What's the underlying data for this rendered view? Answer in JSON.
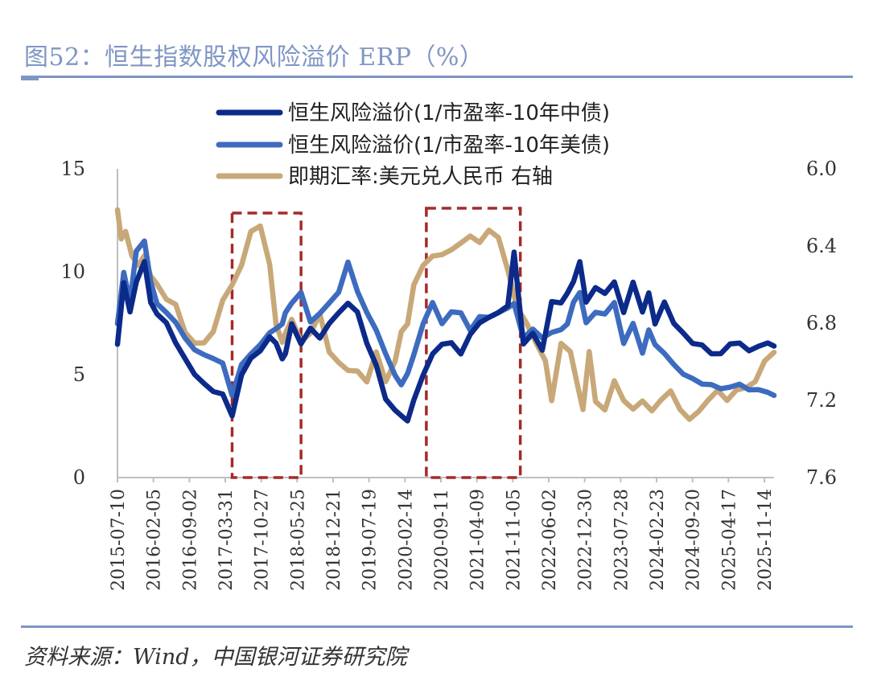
{
  "header": {
    "title": "图52：恒生指数股权风险溢价 ERP（%）"
  },
  "footer": {
    "source": "资料来源：Wind，中国银河证券研究院"
  },
  "colors": {
    "s1": "#0b2a8a",
    "s2": "#3d6bbf",
    "s3": "#c8a878",
    "box": "#a52a2a",
    "axis": "#bfbfbf",
    "accent": "#7f96c4"
  },
  "chart_data": {
    "type": "line",
    "title": "恒生指数股权风险溢价 ERP（%）",
    "x_ticks": [
      "2015-07-10",
      "2016-02-05",
      "2016-09-02",
      "2017-03-31",
      "2017-10-27",
      "2018-05-25",
      "2018-12-21",
      "2019-07-19",
      "2020-02-14",
      "2020-09-11",
      "2021-04-09",
      "2021-11-05",
      "2022-06-02",
      "2022-12-30",
      "2023-07-28",
      "2024-02-23",
      "2024-09-20",
      "2025-04-17",
      "2025-11-14"
    ],
    "x_range": [
      2015.52,
      2026.0
    ],
    "y_left": {
      "min": 0,
      "max": 15,
      "ticks": [
        "0",
        "5",
        "10",
        "15"
      ]
    },
    "y_right": {
      "min": 6.0,
      "max": 7.6,
      "inverted": true,
      "ticks": [
        "6.0",
        "6.4",
        "6.8",
        "7.2",
        "7.6"
      ]
    },
    "series": [
      {
        "name": "恒生风险溢价(1/市盈率-10年中债)",
        "axis": "left",
        "color": "#0b2a8a",
        "t": [
          2015.52,
          2015.62,
          2015.72,
          2015.82,
          2015.95,
          2016.05,
          2016.15,
          2016.3,
          2016.45,
          2016.6,
          2016.75,
          2016.9,
          2017.05,
          2017.2,
          2017.35,
          2017.5,
          2017.65,
          2017.8,
          2017.95,
          2018.05,
          2018.15,
          2018.2,
          2018.3,
          2018.45,
          2018.6,
          2018.75,
          2018.9,
          2019.05,
          2019.2,
          2019.35,
          2019.5,
          2019.65,
          2019.8,
          2019.95,
          2020.05,
          2020.15,
          2020.25,
          2020.4,
          2020.55,
          2020.7,
          2020.85,
          2021.0,
          2021.15,
          2021.3,
          2021.45,
          2021.6,
          2021.75,
          2021.85,
          2022.0,
          2022.15,
          2022.3,
          2022.45,
          2022.6,
          2022.7,
          2022.8,
          2022.9,
          2023.0,
          2023.15,
          2023.3,
          2023.45,
          2023.6,
          2023.75,
          2023.9,
          2024.0,
          2024.1,
          2024.25,
          2024.4,
          2024.55,
          2024.7,
          2024.85,
          2025.0,
          2025.15,
          2025.3,
          2025.45,
          2025.6,
          2025.75,
          2025.9,
          2026.0
        ],
        "values": [
          6.5,
          9.5,
          8.0,
          9.5,
          10.5,
          8.5,
          8.0,
          7.5,
          6.5,
          5.8,
          5.0,
          4.6,
          4.2,
          4.0,
          3.0,
          5.0,
          5.8,
          6.2,
          6.8,
          6.5,
          5.8,
          6.0,
          7.5,
          6.5,
          7.2,
          6.8,
          7.5,
          8.0,
          8.5,
          8.0,
          6.5,
          5.5,
          3.8,
          3.3,
          3.0,
          2.7,
          3.8,
          5.0,
          6.0,
          6.5,
          6.5,
          6.0,
          7.0,
          7.5,
          7.8,
          8.0,
          8.3,
          11.0,
          6.5,
          7.0,
          6.2,
          8.5,
          8.5,
          9.0,
          9.5,
          10.5,
          8.5,
          9.2,
          9.0,
          9.5,
          8.0,
          9.5,
          8.0,
          9.0,
          7.5,
          8.5,
          7.5,
          7.0,
          6.5,
          6.5,
          6.0,
          6.0,
          6.5,
          6.5,
          6.2,
          6.4,
          6.5,
          6.4
        ]
      },
      {
        "name": "恒生风险溢价(1/市盈率-10年美债)",
        "axis": "left",
        "color": "#3d6bbf",
        "t": [
          2015.52,
          2015.62,
          2015.72,
          2015.82,
          2015.95,
          2016.05,
          2016.15,
          2016.3,
          2016.45,
          2016.6,
          2016.75,
          2016.9,
          2017.05,
          2017.2,
          2017.35,
          2017.5,
          2017.65,
          2017.8,
          2017.95,
          2018.05,
          2018.15,
          2018.2,
          2018.3,
          2018.45,
          2018.6,
          2018.75,
          2018.9,
          2019.05,
          2019.2,
          2019.35,
          2019.5,
          2019.65,
          2019.8,
          2019.95,
          2020.05,
          2020.15,
          2020.25,
          2020.4,
          2020.55,
          2020.7,
          2020.85,
          2021.0,
          2021.15,
          2021.3,
          2021.45,
          2021.6,
          2021.75,
          2021.85,
          2022.0,
          2022.15,
          2022.3,
          2022.45,
          2022.6,
          2022.7,
          2022.8,
          2022.9,
          2023.0,
          2023.15,
          2023.3,
          2023.45,
          2023.6,
          2023.75,
          2023.9,
          2024.0,
          2024.1,
          2024.25,
          2024.4,
          2024.55,
          2024.7,
          2024.85,
          2025.0,
          2025.15,
          2025.3,
          2025.45,
          2025.6,
          2025.75,
          2025.9,
          2026.0
        ],
        "values": [
          7.5,
          10.0,
          8.5,
          11.0,
          11.5,
          9.5,
          8.5,
          8.0,
          7.5,
          6.8,
          6.2,
          6.0,
          5.8,
          5.5,
          4.0,
          5.5,
          6.0,
          6.5,
          7.0,
          7.2,
          7.5,
          8.0,
          8.5,
          9.0,
          7.5,
          8.0,
          8.5,
          9.0,
          10.5,
          9.0,
          8.0,
          7.2,
          6.0,
          5.0,
          4.5,
          5.0,
          6.0,
          7.5,
          8.5,
          7.5,
          8.0,
          8.0,
          7.2,
          7.8,
          7.8,
          8.0,
          8.2,
          8.5,
          6.8,
          7.2,
          6.8,
          7.0,
          7.2,
          7.5,
          8.5,
          9.0,
          7.5,
          8.0,
          8.0,
          8.5,
          6.5,
          7.5,
          6.0,
          7.2,
          6.5,
          6.0,
          5.5,
          5.0,
          4.8,
          4.6,
          4.5,
          4.3,
          4.4,
          4.5,
          4.3,
          4.3,
          4.1,
          4.0
        ]
      },
      {
        "name": "即期汇率:美元兑人民币 右轴",
        "axis": "right",
        "color": "#c8a878",
        "t": [
          2015.52,
          2015.58,
          2015.65,
          2015.75,
          2015.85,
          2015.95,
          2016.05,
          2016.15,
          2016.3,
          2016.45,
          2016.6,
          2016.75,
          2016.9,
          2017.05,
          2017.2,
          2017.35,
          2017.5,
          2017.65,
          2017.8,
          2017.95,
          2018.05,
          2018.15,
          2018.2,
          2018.3,
          2018.45,
          2018.6,
          2018.75,
          2018.9,
          2019.05,
          2019.2,
          2019.35,
          2019.5,
          2019.65,
          2019.8,
          2019.95,
          2020.05,
          2020.15,
          2020.25,
          2020.4,
          2020.55,
          2020.7,
          2020.85,
          2021.0,
          2021.15,
          2021.3,
          2021.45,
          2021.6,
          2021.75,
          2021.9,
          2022.05,
          2022.2,
          2022.35,
          2022.45,
          2022.6,
          2022.75,
          2022.85,
          2022.95,
          2023.05,
          2023.15,
          2023.3,
          2023.45,
          2023.6,
          2023.75,
          2023.9,
          2024.05,
          2024.2,
          2024.35,
          2024.5,
          2024.65,
          2024.8,
          2024.95,
          2025.1,
          2025.25,
          2025.4,
          2025.55,
          2025.7,
          2025.85,
          2026.0
        ],
        "values": [
          6.21,
          6.36,
          6.33,
          6.45,
          6.5,
          6.45,
          6.55,
          6.6,
          6.68,
          6.7,
          6.85,
          6.9,
          6.9,
          6.85,
          6.68,
          6.6,
          6.5,
          6.32,
          6.3,
          6.5,
          6.8,
          6.9,
          6.85,
          6.78,
          6.9,
          6.85,
          6.75,
          6.95,
          7.0,
          7.05,
          7.05,
          7.1,
          6.95,
          7.1,
          7.0,
          6.85,
          6.8,
          6.6,
          6.5,
          6.45,
          6.45,
          6.42,
          6.38,
          6.35,
          6.38,
          6.32,
          6.36,
          6.52,
          6.72,
          6.8,
          6.9,
          7.0,
          7.2,
          6.9,
          6.95,
          7.1,
          7.25,
          6.95,
          7.2,
          7.25,
          7.1,
          7.2,
          7.25,
          7.2,
          7.25,
          7.2,
          7.15,
          7.25,
          7.3,
          7.25,
          7.2,
          7.15,
          7.2,
          7.15,
          7.13,
          7.1,
          7.0,
          6.95
        ]
      }
    ],
    "legend": [
      "恒生风险溢价(1/市盈率-10年中债)",
      "恒生风险溢价(1/市盈率-10年美债)",
      "即期汇率:美元兑人民币 右轴"
    ],
    "highlight_boxes": [
      {
        "from": 2017.35,
        "to": 2018.45
      },
      {
        "from": 2020.45,
        "to": 2021.95
      }
    ]
  }
}
